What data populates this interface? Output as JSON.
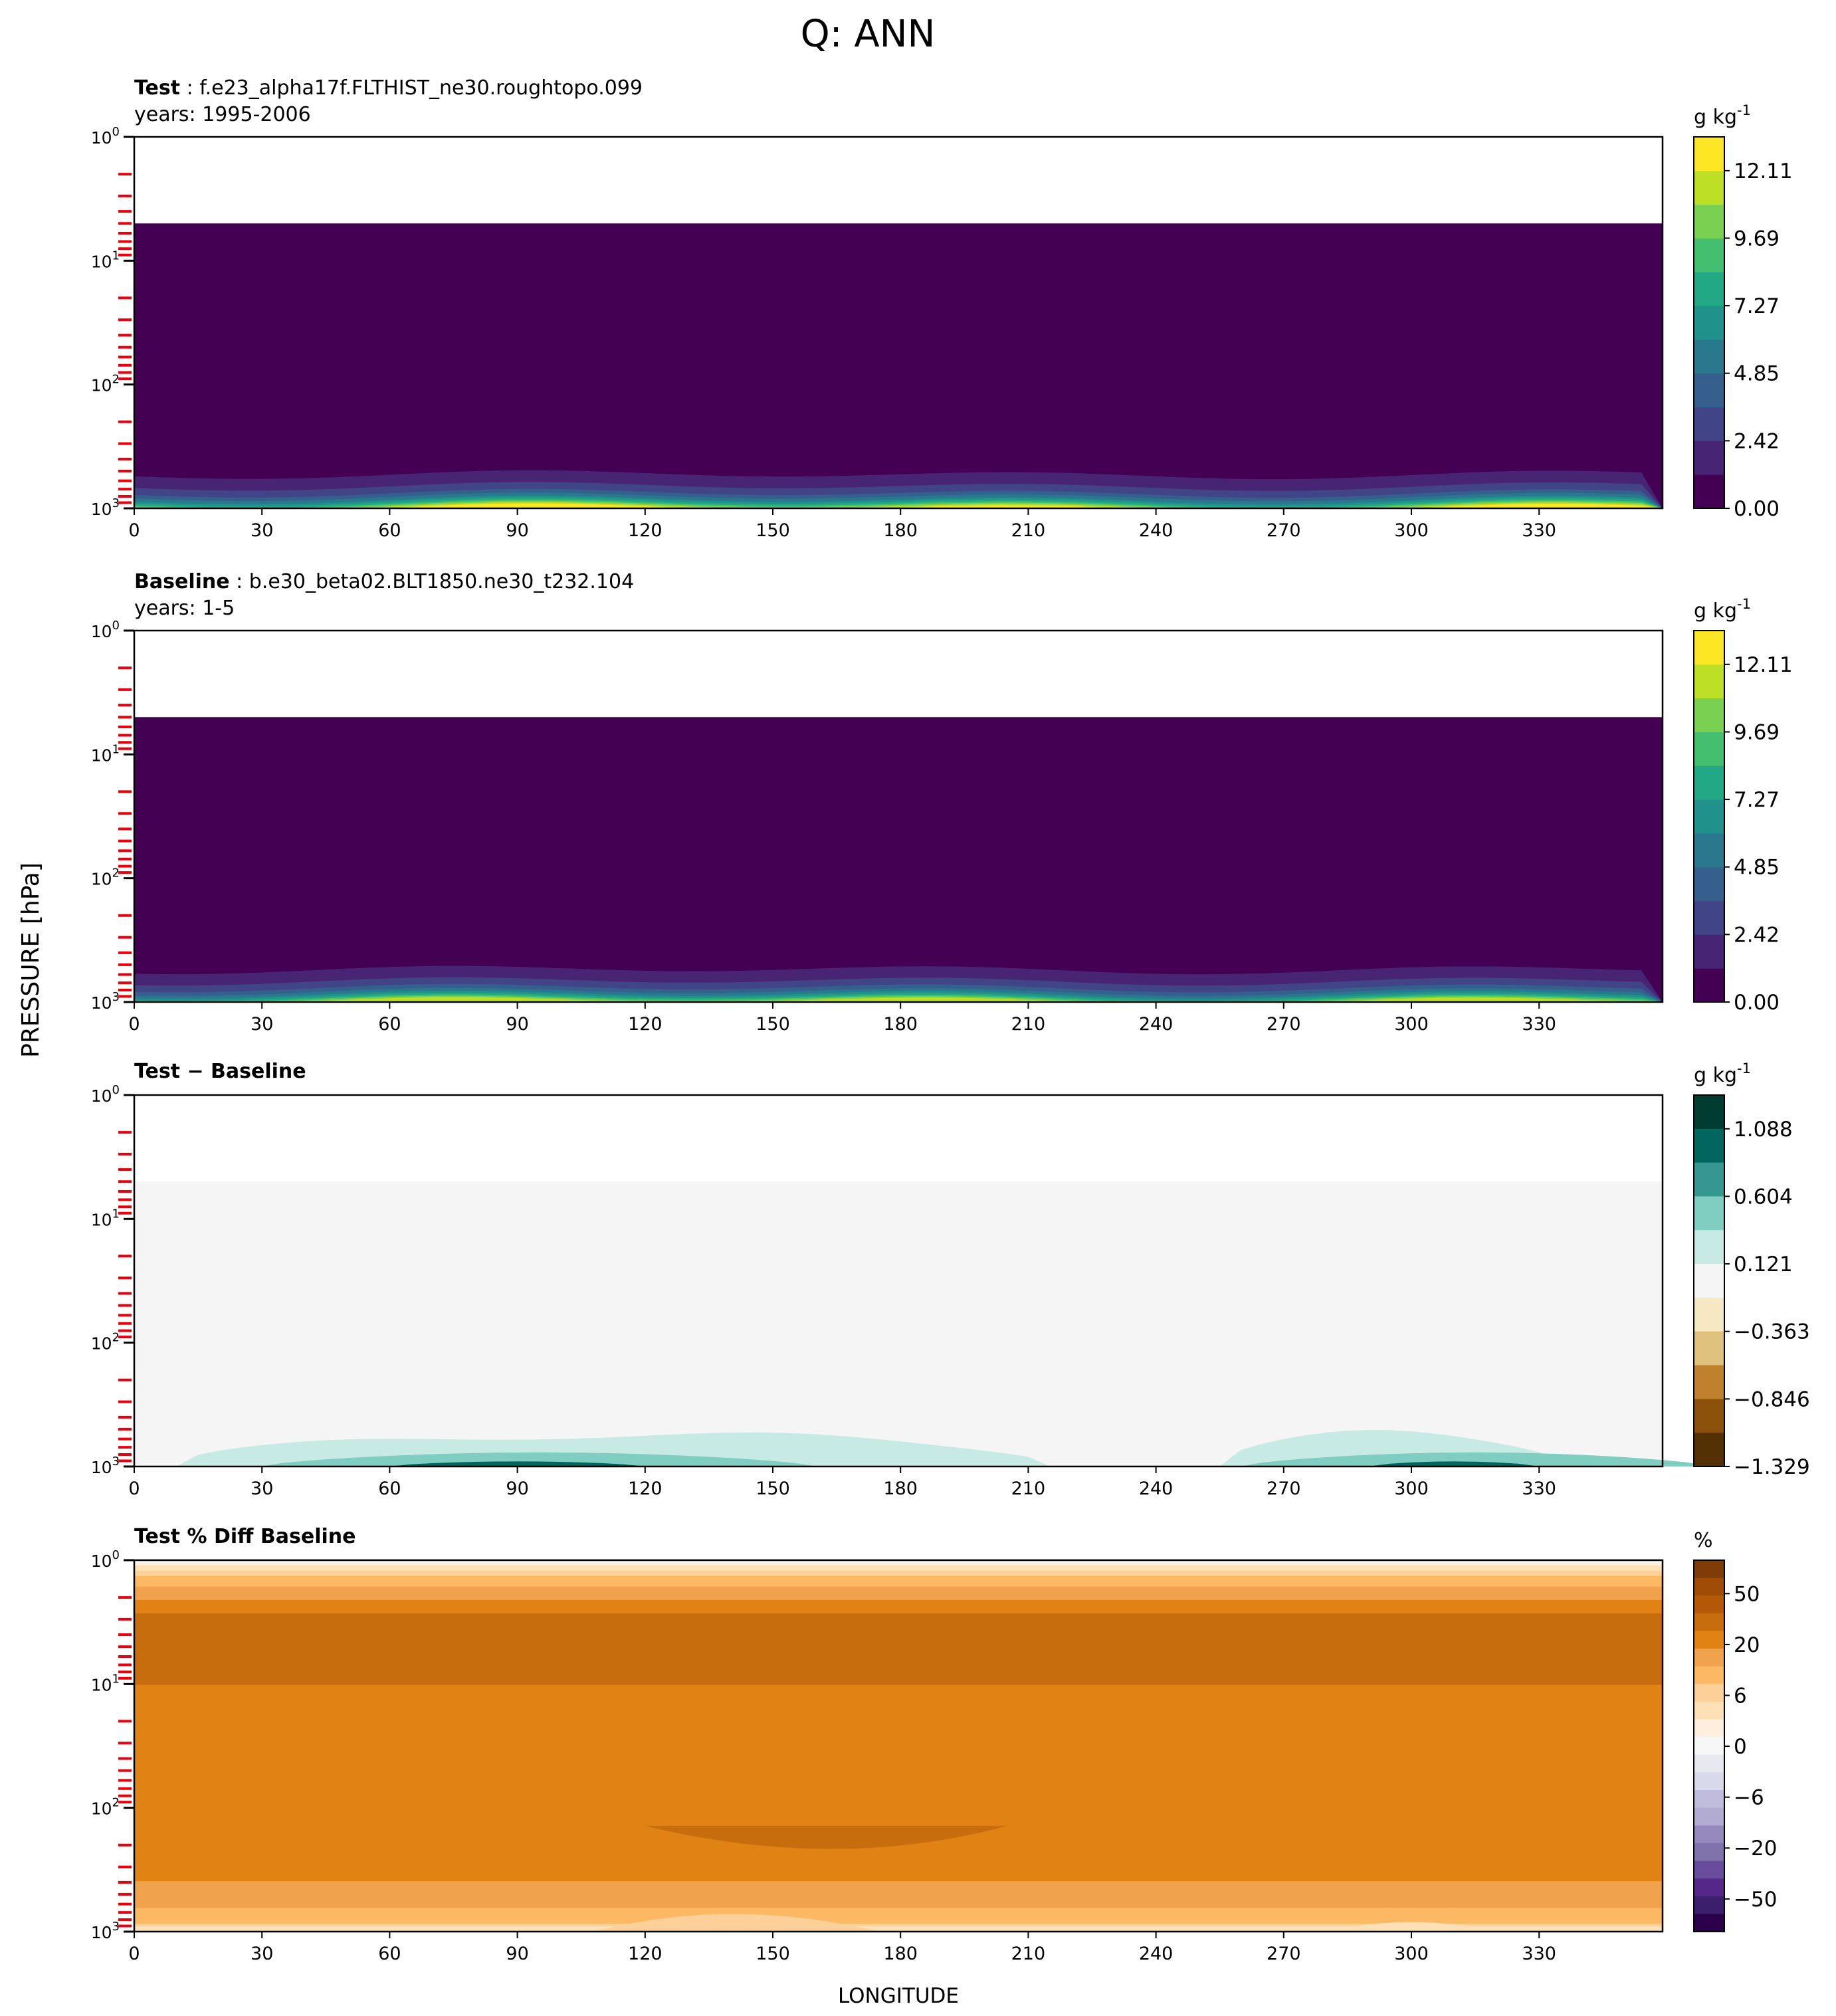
{
  "figure": {
    "title": "Q: ANN",
    "ylabel": "PRESSURE [hPa]",
    "xlabel": "LONGITUDE"
  },
  "chart_data": [
    {
      "type": "heatmap",
      "title_bold": "Test",
      "title_rest": ": f.e23_alpha17f.FLTHIST_ne30.roughtopo.099",
      "subtitle": "years: 1995-2006",
      "xlabel": "LONGITUDE",
      "ylabel": "PRESSURE [hPa]",
      "x_ticks": [
        0,
        30,
        60,
        90,
        120,
        150,
        180,
        210,
        240,
        270,
        300,
        330
      ],
      "xlim": [
        0,
        359
      ],
      "y_scale": "log",
      "y_inverted": true,
      "ylim": [
        1,
        1000
      ],
      "y_tick_labels": [
        "10^0",
        "10^1",
        "10^2",
        "10^3"
      ],
      "model_top_hPa": 5,
      "colormap": "viridis",
      "colorbar_unit": "g kg^-1",
      "colorbar_ticks": [
        "0.00",
        "2.42",
        "4.85",
        "7.27",
        "9.69",
        "12.11"
      ],
      "colorbar_levels": [
        0,
        1.21,
        2.42,
        3.64,
        4.85,
        6.06,
        7.27,
        8.48,
        9.69,
        10.9,
        12.11,
        13.32,
        14.53
      ],
      "colorbar_colors": [
        "#440154",
        "#482475",
        "#414487",
        "#355f8d",
        "#2a788e",
        "#21918c",
        "#22a884",
        "#44bf70",
        "#7ad151",
        "#bddf26",
        "#fde725"
      ],
      "profile_pressure_hPa": [
        5,
        400,
        600,
        750,
        850,
        920,
        1000
      ],
      "profile_values": [
        0.01,
        0.4,
        1.6,
        3.5,
        5.8,
        8.5,
        12.5
      ]
    },
    {
      "type": "heatmap",
      "title_bold": "Baseline",
      "title_rest": ": b.e30_beta02.BLT1850.ne30_t232.104",
      "subtitle": "years: 1-5",
      "xlabel": "LONGITUDE",
      "ylabel": "PRESSURE [hPa]",
      "x_ticks": [
        0,
        30,
        60,
        90,
        120,
        150,
        180,
        210,
        240,
        270,
        300,
        330
      ],
      "xlim": [
        0,
        359
      ],
      "y_scale": "log",
      "y_inverted": true,
      "ylim": [
        1,
        1000
      ],
      "y_tick_labels": [
        "10^0",
        "10^1",
        "10^2",
        "10^3"
      ],
      "model_top_hPa": 5,
      "colormap": "viridis",
      "colorbar_unit": "g kg^-1",
      "colorbar_ticks": [
        "0.00",
        "2.42",
        "4.85",
        "7.27",
        "9.69",
        "12.11"
      ],
      "colorbar_levels": [
        0,
        1.21,
        2.42,
        3.64,
        4.85,
        6.06,
        7.27,
        8.48,
        9.69,
        10.9,
        12.11,
        13.32,
        14.53
      ],
      "colorbar_colors": [
        "#440154",
        "#482475",
        "#414487",
        "#355f8d",
        "#2a788e",
        "#21918c",
        "#22a884",
        "#44bf70",
        "#7ad151",
        "#bddf26",
        "#fde725"
      ],
      "profile_pressure_hPa": [
        5,
        400,
        600,
        750,
        850,
        920,
        1000
      ],
      "profile_values": [
        0.01,
        0.4,
        1.5,
        3.3,
        5.4,
        8.0,
        12.0
      ]
    },
    {
      "type": "heatmap",
      "title_bold": "Test − Baseline",
      "title_rest": "",
      "subtitle": "",
      "xlabel": "LONGITUDE",
      "ylabel": "PRESSURE [hPa]",
      "x_ticks": [
        0,
        30,
        60,
        90,
        120,
        150,
        180,
        210,
        240,
        270,
        300,
        330
      ],
      "xlim": [
        0,
        359
      ],
      "y_scale": "log",
      "y_inverted": true,
      "ylim": [
        1,
        1000
      ],
      "y_tick_labels": [
        "10^0",
        "10^1",
        "10^2",
        "10^3"
      ],
      "model_top_hPa": 5,
      "colormap": "BrBG",
      "colorbar_unit": "g kg^-1",
      "colorbar_ticks": [
        "1.088",
        "0.604",
        "0.121",
        "−0.363",
        "−0.846",
        "−1.329"
      ],
      "colorbar_colors": [
        "#003c30",
        "#01665e",
        "#35978f",
        "#80cdc1",
        "#c7eae5",
        "#f5f5f5",
        "#f6e8c3",
        "#dfc27d",
        "#bf812d",
        "#8c510a",
        "#543005"
      ],
      "background_value": 0.0,
      "moist_bands_longitude": [
        [
          10,
          215
        ],
        [
          255,
          335
        ]
      ],
      "moist_band_top_hPa": 500,
      "strong_band_longitude": [
        [
          60,
          120
        ],
        [
          290,
          330
        ]
      ]
    },
    {
      "type": "heatmap",
      "title_bold": "Test % Diff Baseline",
      "title_rest": "",
      "subtitle": "",
      "xlabel": "LONGITUDE",
      "ylabel": "PRESSURE [hPa]",
      "x_ticks": [
        0,
        30,
        60,
        90,
        120,
        150,
        180,
        210,
        240,
        270,
        300,
        330
      ],
      "xlim": [
        0,
        359
      ],
      "y_scale": "log",
      "y_inverted": true,
      "ylim": [
        1,
        1000
      ],
      "y_tick_labels": [
        "10^0",
        "10^1",
        "10^2",
        "10^3"
      ],
      "colormap": "PuOr_r",
      "colorbar_unit": "%",
      "colorbar_ticks": [
        "50",
        "20",
        "6",
        "0",
        "−6",
        "−20",
        "−50"
      ],
      "colorbar_colors": [
        "#7f3b08",
        "#a14c06",
        "#b35806",
        "#c86d0e",
        "#e08214",
        "#f0a24c",
        "#fdb863",
        "#fdd09a",
        "#fee0b6",
        "#fdeedd",
        "#f7f7f7",
        "#e8e8f0",
        "#d8daeb",
        "#c0bcdb",
        "#b2abd2",
        "#9589bd",
        "#8073ac",
        "#6a4c9c",
        "#542788",
        "#3b1e6c",
        "#2d004b"
      ],
      "profile_pressure_hPa": [
        1,
        3.5,
        10,
        35,
        120,
        400,
        800,
        1000
      ],
      "profile_values": [
        0,
        25,
        20,
        15,
        20,
        15,
        8,
        2
      ]
    }
  ]
}
